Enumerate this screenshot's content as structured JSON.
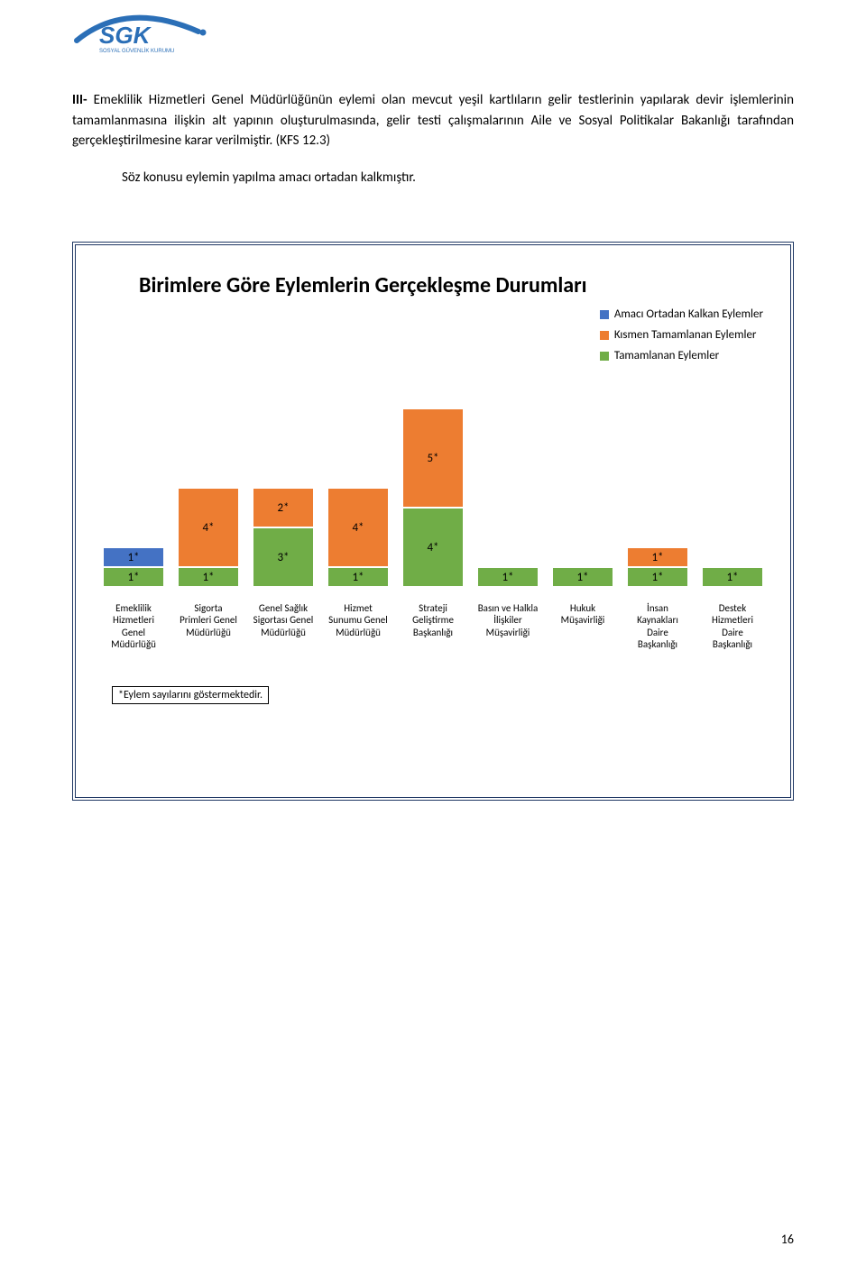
{
  "logo": {
    "text_main": "SGK",
    "text_sub": "SOSYAL GÜVENLİK KURUMU",
    "arc_color": "#2b6fb7",
    "text_color": "#2b6fb7"
  },
  "paragraph1_prefix_bold": "III-",
  "paragraph1": "III- Emeklilik Hizmetleri Genel Müdürlüğünün eylemi olan mevcut yeşil kartlıların gelir testlerinin yapılarak devir işlemlerinin tamamlanmasına ilişkin alt yapının oluşturulmasında, gelir testi çalışmalarının Aile ve Sosyal Politikalar Bakanlığı tarafından gerçekleştirilmesine karar verilmiştir. (KFS 12.3)",
  "paragraph2": "Söz konusu eylemin yapılma amacı ortadan kalkmıştır.",
  "chart": {
    "title": "Birimlere Göre Eylemlerin Gerçekleşme Durumları",
    "unit_height": 22,
    "legend": [
      {
        "label": "Amacı Ortadan Kalkan Eylemler",
        "color": "#4472c4"
      },
      {
        "label": "Kısmen Tamamlanan Eylemler",
        "color": "#ed7d31"
      },
      {
        "label": "Tamamlanan Eylemler",
        "color": "#70ad47"
      }
    ],
    "categories": [
      "Emeklilik Hizmetleri Genel Müdürlüğü",
      "Sigorta Primleri Genel Müdürlüğü",
      "Genel Sağlık Sigortası Genel Müdürlüğü",
      "Hizmet Sunumu Genel Müdürlüğü",
      "Strateji Geliştirme Başkanlığı",
      "Basın ve Halkla İlişkiler Müşavirliği",
      "Hukuk Müşavirliği",
      "İnsan Kaynakları Daire Başkanlığı",
      "Destek Hizmetleri Daire Başkanlığı"
    ],
    "stacks": [
      [
        {
          "v": 1,
          "c": "#70ad47"
        },
        {
          "v": 1,
          "c": "#4472c4"
        }
      ],
      [
        {
          "v": 1,
          "c": "#70ad47"
        },
        {
          "v": 4,
          "c": "#ed7d31"
        }
      ],
      [
        {
          "v": 3,
          "c": "#70ad47"
        },
        {
          "v": 2,
          "c": "#ed7d31"
        }
      ],
      [
        {
          "v": 1,
          "c": "#70ad47"
        },
        {
          "v": 4,
          "c": "#ed7d31"
        }
      ],
      [
        {
          "v": 4,
          "c": "#70ad47"
        },
        {
          "v": 5,
          "c": "#ed7d31"
        }
      ],
      [
        {
          "v": 1,
          "c": "#70ad47"
        }
      ],
      [
        {
          "v": 1,
          "c": "#70ad47"
        }
      ],
      [
        {
          "v": 1,
          "c": "#70ad47"
        },
        {
          "v": 1,
          "c": "#ed7d31"
        }
      ],
      [
        {
          "v": 1,
          "c": "#70ad47"
        }
      ]
    ],
    "footnote": "*Eylem sayılarını göstermektedir."
  },
  "page_number": "16"
}
